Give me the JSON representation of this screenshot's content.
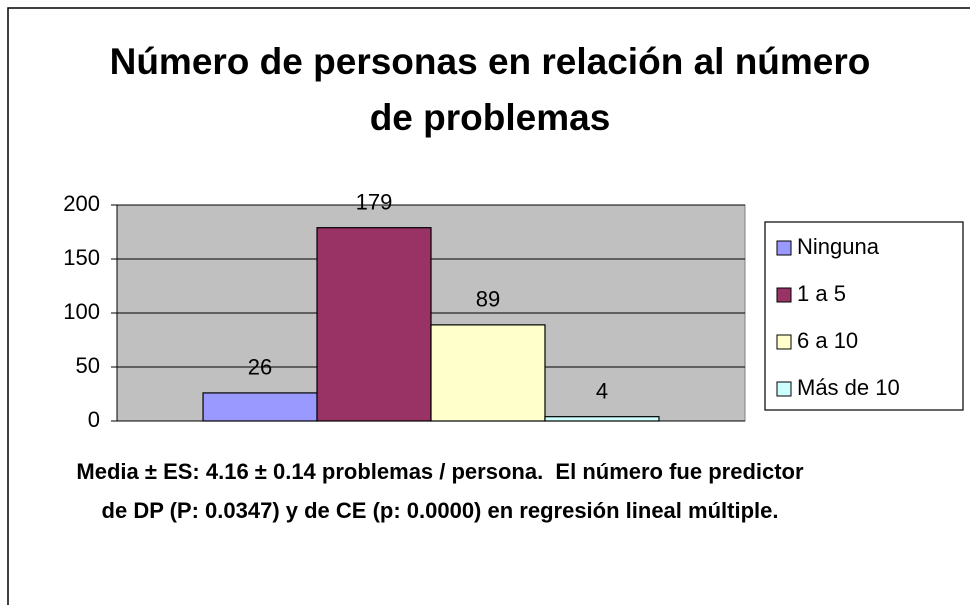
{
  "chart_data": {
    "type": "bar",
    "title": "Número de personas en relación al número de problemas",
    "categories": [
      null
    ],
    "series": [
      {
        "name": "Ninguna",
        "color": "#9999ff",
        "values": [
          26
        ]
      },
      {
        "name": "1 a 5",
        "color": "#993366",
        "values": [
          179
        ]
      },
      {
        "name": "6 a 10",
        "color": "#ffffcc",
        "values": [
          89
        ]
      },
      {
        "name": "Más de 10",
        "color": "#ccffff",
        "values": [
          4
        ]
      }
    ],
    "ylim": [
      0,
      200
    ],
    "yticks": [
      0,
      50,
      100,
      150,
      200
    ],
    "grid": true,
    "legend": "right",
    "annotation": "Media ± ES: 4.16 ± 0.14 problemas / persona.  El número fue predictor de DP (P: 0.0347) y de CE (p: 0.0000) en regresión lineal múltiple."
  }
}
